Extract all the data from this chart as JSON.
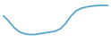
{
  "x": [
    0,
    1,
    2,
    3,
    4,
    5,
    6,
    7,
    8,
    9,
    10,
    11,
    12,
    13,
    14,
    15,
    16,
    17,
    18,
    19,
    20
  ],
  "y": [
    0.72,
    0.6,
    0.45,
    0.35,
    0.3,
    0.28,
    0.28,
    0.3,
    0.32,
    0.34,
    0.36,
    0.42,
    0.55,
    0.72,
    0.84,
    0.9,
    0.93,
    0.95,
    0.96,
    0.97,
    0.96
  ],
  "line_color": "#5ba3c9",
  "linewidth": 1.3,
  "background_color": "#ffffff",
  "ylim": [
    0.1,
    1.05
  ],
  "xlim": [
    -0.3,
    20.3
  ]
}
